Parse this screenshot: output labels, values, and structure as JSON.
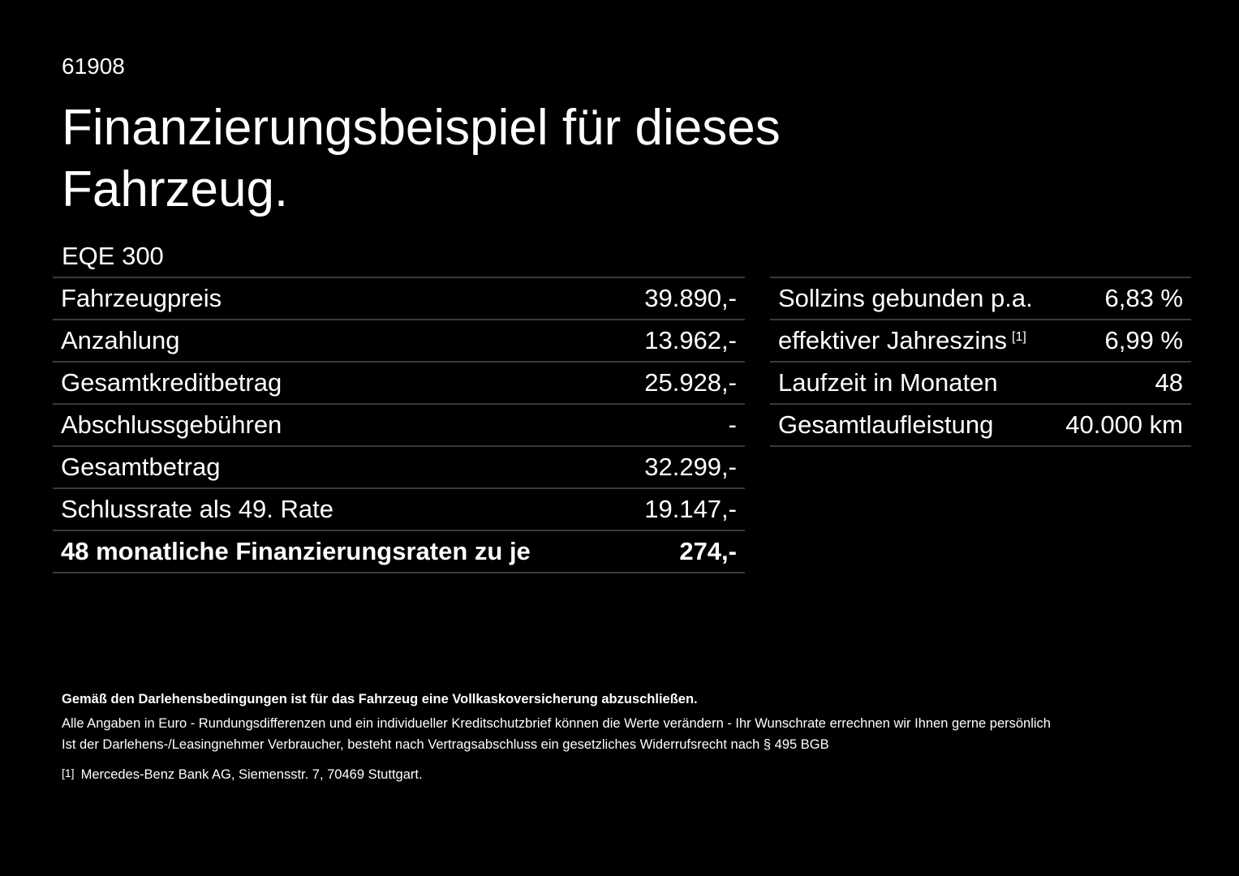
{
  "header": {
    "code": "61908",
    "title": "Finanzierungsbeispiel für dieses Fahrzeug."
  },
  "model": "EQE 300",
  "left_table": {
    "rows": [
      [
        "Fahrzeugpreis",
        "39.890,-"
      ],
      [
        "Anzahlung",
        "13.962,-"
      ],
      [
        "Gesamtkreditbetrag",
        "25.928,-"
      ],
      [
        "Abschlussgebühren",
        "-"
      ],
      [
        "Gesamtbetrag",
        "32.299,-"
      ],
      [
        "Schlussrate als 49. Rate",
        "19.147,-"
      ],
      [
        "48 monatliche Finanzierungsraten zu je",
        "274,-"
      ]
    ]
  },
  "right_table": {
    "rows": [
      {
        "label": "Sollzins gebunden p.a.",
        "value": "6,83 %"
      },
      {
        "label": "effektiver Jahreszins",
        "note": "[1]",
        "value": "6,99 %"
      },
      {
        "label": "Laufzeit in Monaten",
        "value": "48"
      },
      {
        "label": "Gesamtlaufleistung",
        "value": "40.000 km"
      }
    ]
  },
  "footer": {
    "notice": "Gemäß den Darlehensbedingungen ist für das Fahrzeug eine Vollkaskoversicherung abzuschließen.",
    "lines": [
      "Alle Angaben in Euro - Rundungsdifferenzen und ein individueller Kreditschutzbrief können die Werte verändern - Ihr Wunschrate errechnen wir Ihnen gerne persönlich",
      "Ist der Darlehens-/Leasingnehmer Verbraucher, besteht nach Vertragsabschluss ein gesetzliches Widerrufsrecht nach § 495 BGB"
    ],
    "footnote": {
      "marker": "[1]",
      "text": "Mercedes-Benz Bank AG, Siemensstr. 7, 70469 Stuttgart."
    }
  }
}
